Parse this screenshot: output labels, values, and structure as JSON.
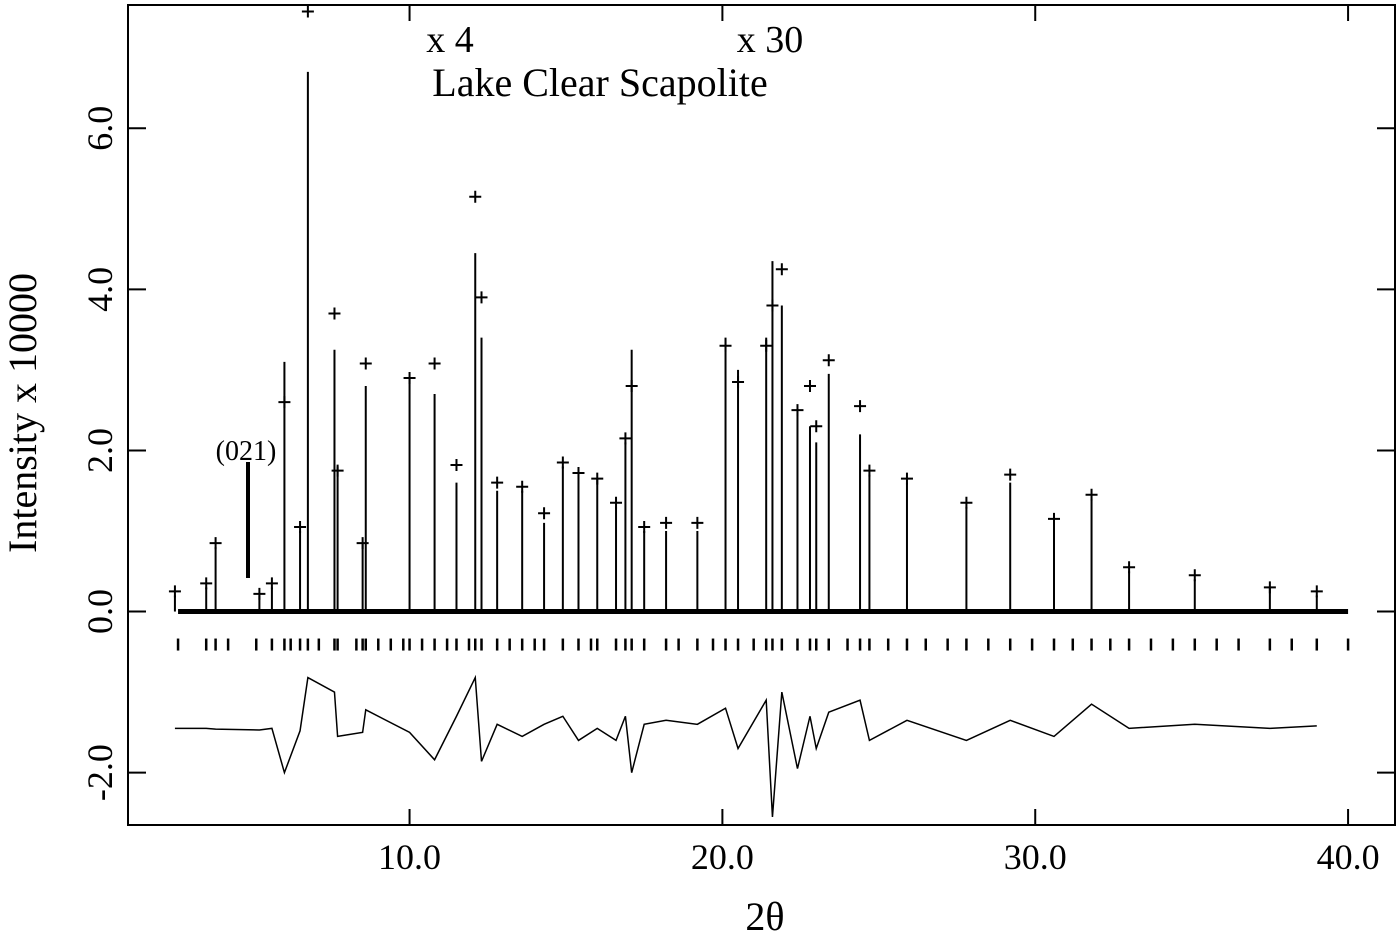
{
  "chart_data": {
    "type": "powder-diffraction",
    "title": "Lake Clear Scapolite",
    "annotations": [
      "x 4",
      "x 30",
      "(021)"
    ],
    "x_label": "2θ",
    "y_label": "Intensity x 10000",
    "xlim": [
      1.0,
      41.5
    ],
    "ylim": [
      -2.65,
      7.53
    ],
    "xticks": [
      {
        "value": 10,
        "label": "10.0"
      },
      {
        "value": 20,
        "label": "20.0"
      },
      {
        "value": 30,
        "label": "30.0"
      },
      {
        "value": 40,
        "label": "40.0"
      }
    ],
    "yticks": [
      {
        "value": -2,
        "label": "-2.0"
      },
      {
        "value": 0,
        "label": "0.0"
      },
      {
        "value": 2,
        "label": "2.0"
      },
      {
        "value": 4,
        "label": "4.0"
      },
      {
        "value": 6,
        "label": "6.0"
      }
    ],
    "color": "#000000",
    "x": [
      2.5,
      3.5,
      3.8,
      5.2,
      5.6,
      6.0,
      6.5,
      6.75,
      7.6,
      7.7,
      8.5,
      8.6,
      10.0,
      10.8,
      11.5,
      12.1,
      12.3,
      12.8,
      13.6,
      14.3,
      14.9,
      15.4,
      16.0,
      16.6,
      16.9,
      17.1,
      17.5,
      18.2,
      19.2,
      20.1,
      20.5,
      21.4,
      21.6,
      21.9,
      22.4,
      22.8,
      23.0,
      23.4,
      24.4,
      24.7,
      25.9,
      27.8,
      29.2,
      30.6,
      31.8,
      33.0,
      35.1,
      37.5,
      39.0
    ],
    "calculated": [
      0.2,
      0.3,
      0.8,
      0.2,
      0.3,
      3.1,
      1.0,
      6.7,
      3.25,
      1.8,
      0.85,
      2.8,
      2.9,
      2.7,
      1.6,
      4.45,
      3.4,
      1.5,
      1.5,
      1.1,
      1.8,
      1.7,
      1.65,
      1.3,
      2.1,
      3.25,
      1.0,
      1.0,
      1.0,
      3.4,
      3.0,
      3.4,
      4.35,
      3.8,
      2.5,
      2.3,
      2.1,
      2.95,
      2.2,
      1.7,
      1.6,
      1.3,
      1.6,
      1.1,
      1.4,
      0.5,
      0.4,
      0.3,
      0.2
    ],
    "observed": [
      0.25,
      0.35,
      0.85,
      0.22,
      0.35,
      2.6,
      1.05,
      7.45,
      3.7,
      1.75,
      0.85,
      3.08,
      2.9,
      3.08,
      1.82,
      5.15,
      3.9,
      1.6,
      1.55,
      1.22,
      1.85,
      1.72,
      1.65,
      1.35,
      2.15,
      2.8,
      1.05,
      1.1,
      1.1,
      3.3,
      2.85,
      3.3,
      3.8,
      4.25,
      2.5,
      2.8,
      2.3,
      3.12,
      2.55,
      1.75,
      1.65,
      1.35,
      1.7,
      1.15,
      1.45,
      0.55,
      0.45,
      0.3,
      0.25
    ],
    "difference": [
      -1.45,
      -1.45,
      -1.46,
      -1.47,
      -1.45,
      -2.0,
      -1.48,
      -0.82,
      -1.0,
      -1.55,
      -1.5,
      -1.22,
      -1.5,
      -1.84,
      -1.3,
      -0.82,
      -1.86,
      -1.4,
      -1.55,
      -1.4,
      -1.3,
      -1.6,
      -1.45,
      -1.6,
      -1.3,
      -2.0,
      -1.4,
      -1.35,
      -1.4,
      -1.2,
      -1.7,
      -1.1,
      -2.55,
      -1.0,
      -1.95,
      -1.3,
      -1.7,
      -1.25,
      -1.1,
      -1.6,
      -1.35,
      -1.6,
      -1.35,
      -1.55,
      -1.15,
      -1.45,
      -1.4,
      -1.45,
      -1.42
    ],
    "reflections": [
      2.6,
      3.5,
      3.8,
      4.2,
      5.1,
      5.6,
      6.0,
      6.2,
      6.5,
      6.75,
      7.1,
      7.6,
      7.7,
      8.3,
      8.5,
      8.6,
      9.0,
      9.4,
      9.8,
      10.0,
      10.4,
      10.8,
      11.2,
      11.5,
      11.9,
      12.1,
      12.3,
      12.8,
      13.2,
      13.6,
      14.0,
      14.3,
      14.9,
      15.4,
      15.8,
      16.0,
      16.6,
      16.9,
      17.1,
      17.5,
      18.2,
      18.6,
      19.2,
      19.7,
      20.1,
      20.5,
      21.0,
      21.4,
      21.6,
      21.9,
      22.4,
      22.8,
      23.0,
      23.4,
      24.0,
      24.4,
      24.7,
      25.3,
      25.9,
      26.5,
      27.2,
      27.8,
      28.5,
      29.2,
      29.9,
      30.6,
      31.2,
      31.8,
      32.4,
      33.0,
      33.7,
      34.4,
      35.1,
      35.8,
      36.5,
      37.5,
      38.2,
      39.0,
      40.0
    ]
  }
}
